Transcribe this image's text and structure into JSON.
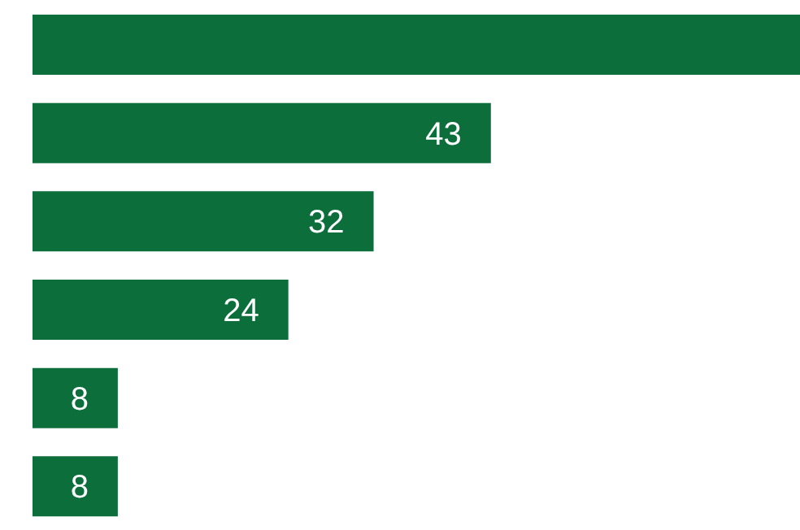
{
  "chart_data": {
    "type": "bar",
    "orientation": "horizontal",
    "categories": [
      null,
      null,
      null,
      null,
      null,
      null
    ],
    "values": [
      72,
      43,
      32,
      24,
      8,
      8
    ],
    "value_labels": [
      null,
      "43",
      "32",
      "24",
      "8",
      "8"
    ],
    "color": "#0b6e3b",
    "xlim": [
      0,
      72
    ],
    "grid": false,
    "legend": false
  }
}
